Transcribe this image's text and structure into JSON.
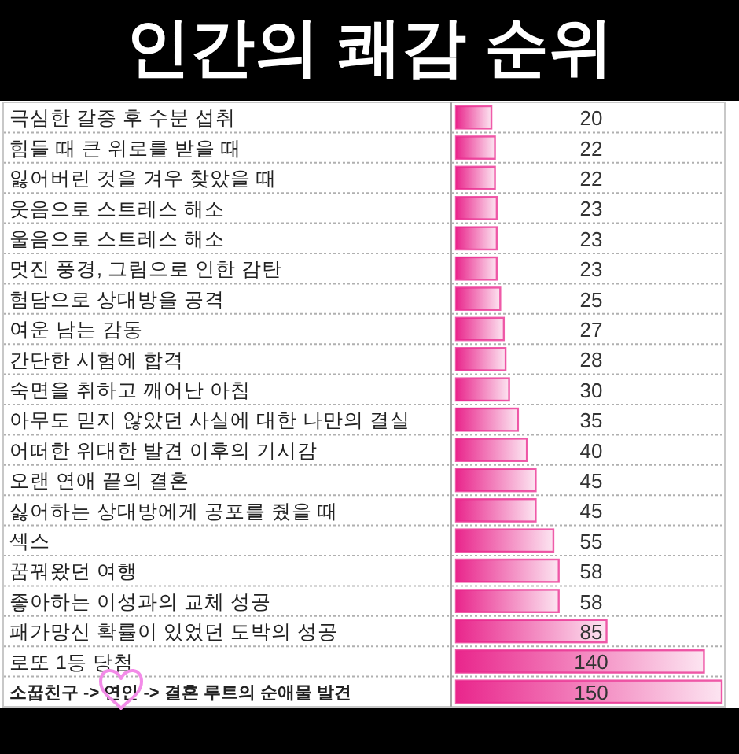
{
  "chart_data": {
    "type": "bar",
    "orientation": "horizontal",
    "title": "인간의 쾌감 순위",
    "categories": [
      "극심한 갈증 후 수분 섭취",
      "힘들 때 큰 위로를 받을 때",
      "잃어버린 것을 겨우 찾았을 때",
      "웃음으로 스트레스 해소",
      "울음으로 스트레스 해소",
      "멋진 풍경, 그림으로 인한 감탄",
      "험담으로 상대방을 공격",
      "여운 남는 감동",
      "간단한 시험에 합격",
      "숙면을 취하고 깨어난 아침",
      "아무도 믿지 않았던 사실에 대한 나만의 결실",
      "어떠한 위대한 발견 이후의 기시감",
      "오랜 연애 끝의 결혼",
      "싫어하는 상대방에게 공포를 줬을 때",
      "섹스",
      "꿈꿔왔던 여행",
      "좋아하는 이성과의 교체 성공",
      "패가망신 확률이 있었던 도박의 성공",
      "로또 1등 당첨",
      "소꿉친구 -> 연인 -> 결혼 루트의 순애물 발견"
    ],
    "values": [
      20,
      22,
      22,
      23,
      23,
      23,
      25,
      27,
      28,
      30,
      35,
      40,
      45,
      45,
      55,
      58,
      58,
      85,
      140,
      150
    ],
    "color": "#e9268c",
    "data_labels": true,
    "grid": "y",
    "tick_labels": "y"
  }
}
